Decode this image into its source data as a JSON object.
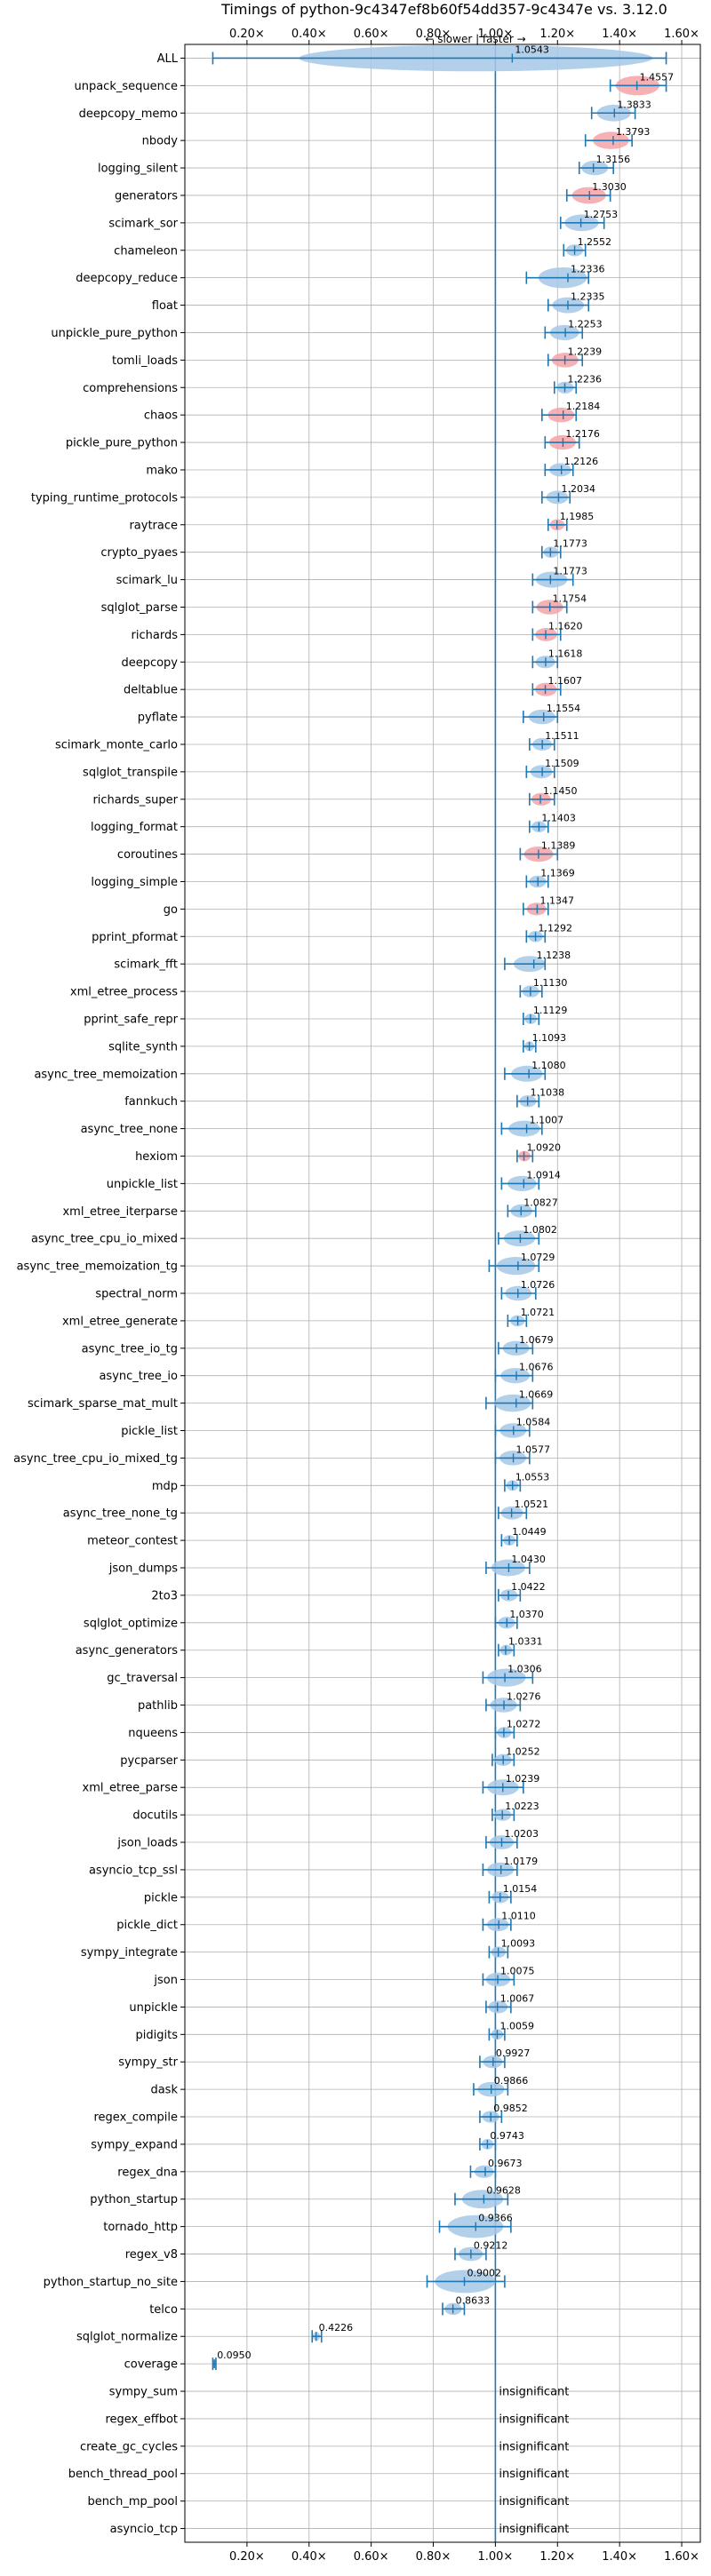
{
  "chart_data": {
    "type": "violin",
    "title": "Timings of python-9c4347ef8b60f54dd357-9c4347e vs. 3.12.0",
    "direction_label": "← slower | faster →",
    "xlim": [
      0.0,
      1.66
    ],
    "x_ticks": [
      0.2,
      0.4,
      0.6,
      0.8,
      1.0,
      1.2,
      1.4,
      1.6
    ],
    "x_tick_labels": [
      "0.20×",
      "0.40×",
      "0.60×",
      "0.80×",
      "1.00×",
      "1.20×",
      "1.40×",
      "1.60×"
    ],
    "reference_line": 1.0,
    "grid": true,
    "colors": {
      "normal": "#1f77b4",
      "normal_fill": "#a6c8e8",
      "highlight_fill": "#f4a3a8",
      "reference": "#1f77b4"
    },
    "insignificant_text": "insignificant",
    "benchmarks": [
      {
        "name": "ALL",
        "value": 1.0543,
        "label": "1.0543",
        "lo": 0.09,
        "hi": 1.55,
        "highlight": false
      },
      {
        "name": "unpack_sequence",
        "value": 1.4557,
        "label": "1.4557",
        "lo": 1.37,
        "hi": 1.55,
        "highlight": true
      },
      {
        "name": "deepcopy_memo",
        "value": 1.3833,
        "label": "1.3833",
        "lo": 1.31,
        "hi": 1.45,
        "highlight": false
      },
      {
        "name": "nbody",
        "value": 1.3793,
        "label": "1.3793",
        "lo": 1.29,
        "hi": 1.44,
        "highlight": true
      },
      {
        "name": "logging_silent",
        "value": 1.3156,
        "label": "1.3156",
        "lo": 1.27,
        "hi": 1.38,
        "highlight": false
      },
      {
        "name": "generators",
        "value": 1.303,
        "label": "1.3030",
        "lo": 1.23,
        "hi": 1.37,
        "highlight": true
      },
      {
        "name": "scimark_sor",
        "value": 1.2753,
        "label": "1.2753",
        "lo": 1.21,
        "hi": 1.35,
        "highlight": false
      },
      {
        "name": "chameleon",
        "value": 1.2552,
        "label": "1.2552",
        "lo": 1.22,
        "hi": 1.29,
        "highlight": false
      },
      {
        "name": "deepcopy_reduce",
        "value": 1.2336,
        "label": "1.2336",
        "lo": 1.1,
        "hi": 1.3,
        "highlight": false
      },
      {
        "name": "float",
        "value": 1.2335,
        "label": "1.2335",
        "lo": 1.17,
        "hi": 1.3,
        "highlight": false
      },
      {
        "name": "unpickle_pure_python",
        "value": 1.2253,
        "label": "1.2253",
        "lo": 1.16,
        "hi": 1.28,
        "highlight": false
      },
      {
        "name": "tomli_loads",
        "value": 1.2239,
        "label": "1.2239",
        "lo": 1.17,
        "hi": 1.28,
        "highlight": true
      },
      {
        "name": "comprehensions",
        "value": 1.2236,
        "label": "1.2236",
        "lo": 1.19,
        "hi": 1.26,
        "highlight": false
      },
      {
        "name": "chaos",
        "value": 1.2184,
        "label": "1.2184",
        "lo": 1.15,
        "hi": 1.26,
        "highlight": true
      },
      {
        "name": "pickle_pure_python",
        "value": 1.2176,
        "label": "1.2176",
        "lo": 1.16,
        "hi": 1.27,
        "highlight": true
      },
      {
        "name": "mako",
        "value": 1.2126,
        "label": "1.2126",
        "lo": 1.16,
        "hi": 1.25,
        "highlight": false
      },
      {
        "name": "typing_runtime_protocols",
        "value": 1.2034,
        "label": "1.2034",
        "lo": 1.15,
        "hi": 1.24,
        "highlight": false
      },
      {
        "name": "raytrace",
        "value": 1.1985,
        "label": "1.1985",
        "lo": 1.17,
        "hi": 1.23,
        "highlight": true
      },
      {
        "name": "crypto_pyaes",
        "value": 1.1773,
        "label": "1.1773",
        "lo": 1.15,
        "hi": 1.21,
        "highlight": false
      },
      {
        "name": "scimark_lu",
        "value": 1.1773,
        "label": "1.1773",
        "lo": 1.12,
        "hi": 1.25,
        "highlight": false
      },
      {
        "name": "sqlglot_parse",
        "value": 1.1754,
        "label": "1.1754",
        "lo": 1.12,
        "hi": 1.23,
        "highlight": true
      },
      {
        "name": "richards",
        "value": 1.162,
        "label": "1.1620",
        "lo": 1.12,
        "hi": 1.21,
        "highlight": true
      },
      {
        "name": "deepcopy",
        "value": 1.1618,
        "label": "1.1618",
        "lo": 1.12,
        "hi": 1.2,
        "highlight": false
      },
      {
        "name": "deltablue",
        "value": 1.1607,
        "label": "1.1607",
        "lo": 1.12,
        "hi": 1.21,
        "highlight": true
      },
      {
        "name": "pyflate",
        "value": 1.1554,
        "label": "1.1554",
        "lo": 1.09,
        "hi": 1.2,
        "highlight": false
      },
      {
        "name": "scimark_monte_carlo",
        "value": 1.1511,
        "label": "1.1511",
        "lo": 1.11,
        "hi": 1.19,
        "highlight": false
      },
      {
        "name": "sqlglot_transpile",
        "value": 1.1509,
        "label": "1.1509",
        "lo": 1.1,
        "hi": 1.19,
        "highlight": false
      },
      {
        "name": "richards_super",
        "value": 1.145,
        "label": "1.1450",
        "lo": 1.11,
        "hi": 1.19,
        "highlight": true
      },
      {
        "name": "logging_format",
        "value": 1.1403,
        "label": "1.1403",
        "lo": 1.11,
        "hi": 1.17,
        "highlight": false
      },
      {
        "name": "coroutines",
        "value": 1.1389,
        "label": "1.1389",
        "lo": 1.08,
        "hi": 1.2,
        "highlight": true
      },
      {
        "name": "logging_simple",
        "value": 1.1369,
        "label": "1.1369",
        "lo": 1.1,
        "hi": 1.17,
        "highlight": false
      },
      {
        "name": "go",
        "value": 1.1347,
        "label": "1.1347",
        "lo": 1.09,
        "hi": 1.17,
        "highlight": true
      },
      {
        "name": "pprint_pformat",
        "value": 1.1292,
        "label": "1.1292",
        "lo": 1.1,
        "hi": 1.16,
        "highlight": false
      },
      {
        "name": "scimark_fft",
        "value": 1.1238,
        "label": "1.1238",
        "lo": 1.03,
        "hi": 1.16,
        "highlight": false
      },
      {
        "name": "xml_etree_process",
        "value": 1.113,
        "label": "1.1130",
        "lo": 1.08,
        "hi": 1.15,
        "highlight": false
      },
      {
        "name": "pprint_safe_repr",
        "value": 1.1129,
        "label": "1.1129",
        "lo": 1.09,
        "hi": 1.14,
        "highlight": false
      },
      {
        "name": "sqlite_synth",
        "value": 1.1093,
        "label": "1.1093",
        "lo": 1.09,
        "hi": 1.13,
        "highlight": false
      },
      {
        "name": "async_tree_memoization",
        "value": 1.108,
        "label": "1.1080",
        "lo": 1.03,
        "hi": 1.16,
        "highlight": false
      },
      {
        "name": "fannkuch",
        "value": 1.1038,
        "label": "1.1038",
        "lo": 1.07,
        "hi": 1.14,
        "highlight": false
      },
      {
        "name": "async_tree_none",
        "value": 1.1007,
        "label": "1.1007",
        "lo": 1.02,
        "hi": 1.15,
        "highlight": false
      },
      {
        "name": "hexiom",
        "value": 1.092,
        "label": "1.0920",
        "lo": 1.07,
        "hi": 1.12,
        "highlight": true
      },
      {
        "name": "unpickle_list",
        "value": 1.0914,
        "label": "1.0914",
        "lo": 1.02,
        "hi": 1.14,
        "highlight": false
      },
      {
        "name": "xml_etree_iterparse",
        "value": 1.0827,
        "label": "1.0827",
        "lo": 1.04,
        "hi": 1.13,
        "highlight": false
      },
      {
        "name": "async_tree_cpu_io_mixed",
        "value": 1.0802,
        "label": "1.0802",
        "lo": 1.01,
        "hi": 1.14,
        "highlight": false
      },
      {
        "name": "async_tree_memoization_tg",
        "value": 1.0729,
        "label": "1.0729",
        "lo": 0.98,
        "hi": 1.14,
        "highlight": false
      },
      {
        "name": "spectral_norm",
        "value": 1.0726,
        "label": "1.0726",
        "lo": 1.02,
        "hi": 1.13,
        "highlight": false
      },
      {
        "name": "xml_etree_generate",
        "value": 1.0721,
        "label": "1.0721",
        "lo": 1.04,
        "hi": 1.1,
        "highlight": false
      },
      {
        "name": "async_tree_io_tg",
        "value": 1.0679,
        "label": "1.0679",
        "lo": 1.01,
        "hi": 1.12,
        "highlight": false
      },
      {
        "name": "async_tree_io",
        "value": 1.0676,
        "label": "1.0676",
        "lo": 1.0,
        "hi": 1.12,
        "highlight": false
      },
      {
        "name": "scimark_sparse_mat_mult",
        "value": 1.0669,
        "label": "1.0669",
        "lo": 0.97,
        "hi": 1.12,
        "highlight": false
      },
      {
        "name": "pickle_list",
        "value": 1.0584,
        "label": "1.0584",
        "lo": 1.0,
        "hi": 1.11,
        "highlight": false
      },
      {
        "name": "async_tree_cpu_io_mixed_tg",
        "value": 1.0577,
        "label": "1.0577",
        "lo": 1.0,
        "hi": 1.11,
        "highlight": false
      },
      {
        "name": "mdp",
        "value": 1.0553,
        "label": "1.0553",
        "lo": 1.03,
        "hi": 1.08,
        "highlight": false
      },
      {
        "name": "async_tree_none_tg",
        "value": 1.0521,
        "label": "1.0521",
        "lo": 1.01,
        "hi": 1.1,
        "highlight": false
      },
      {
        "name": "meteor_contest",
        "value": 1.0449,
        "label": "1.0449",
        "lo": 1.02,
        "hi": 1.07,
        "highlight": false
      },
      {
        "name": "json_dumps",
        "value": 1.043,
        "label": "1.0430",
        "lo": 0.97,
        "hi": 1.11,
        "highlight": false
      },
      {
        "name": "2to3",
        "value": 1.0422,
        "label": "1.0422",
        "lo": 1.01,
        "hi": 1.08,
        "highlight": false
      },
      {
        "name": "sqlglot_optimize",
        "value": 1.037,
        "label": "1.0370",
        "lo": 1.0,
        "hi": 1.07,
        "highlight": false
      },
      {
        "name": "async_generators",
        "value": 1.0331,
        "label": "1.0331",
        "lo": 1.01,
        "hi": 1.06,
        "highlight": false
      },
      {
        "name": "gc_traversal",
        "value": 1.0306,
        "label": "1.0306",
        "lo": 0.96,
        "hi": 1.12,
        "highlight": false
      },
      {
        "name": "pathlib",
        "value": 1.0276,
        "label": "1.0276",
        "lo": 0.97,
        "hi": 1.08,
        "highlight": false
      },
      {
        "name": "nqueens",
        "value": 1.0272,
        "label": "1.0272",
        "lo": 1.0,
        "hi": 1.06,
        "highlight": false
      },
      {
        "name": "pycparser",
        "value": 1.0252,
        "label": "1.0252",
        "lo": 0.99,
        "hi": 1.06,
        "highlight": false
      },
      {
        "name": "xml_etree_parse",
        "value": 1.0239,
        "label": "1.0239",
        "lo": 0.96,
        "hi": 1.09,
        "highlight": false
      },
      {
        "name": "docutils",
        "value": 1.0223,
        "label": "1.0223",
        "lo": 0.99,
        "hi": 1.06,
        "highlight": false
      },
      {
        "name": "json_loads",
        "value": 1.0203,
        "label": "1.0203",
        "lo": 0.97,
        "hi": 1.07,
        "highlight": false
      },
      {
        "name": "asyncio_tcp_ssl",
        "value": 1.0179,
        "label": "1.0179",
        "lo": 0.96,
        "hi": 1.07,
        "highlight": false
      },
      {
        "name": "pickle",
        "value": 1.0154,
        "label": "1.0154",
        "lo": 0.98,
        "hi": 1.05,
        "highlight": false
      },
      {
        "name": "pickle_dict",
        "value": 1.011,
        "label": "1.0110",
        "lo": 0.96,
        "hi": 1.05,
        "highlight": false
      },
      {
        "name": "sympy_integrate",
        "value": 1.0093,
        "label": "1.0093",
        "lo": 0.98,
        "hi": 1.04,
        "highlight": false
      },
      {
        "name": "json",
        "value": 1.0075,
        "label": "1.0075",
        "lo": 0.96,
        "hi": 1.06,
        "highlight": false
      },
      {
        "name": "unpickle",
        "value": 1.0067,
        "label": "1.0067",
        "lo": 0.97,
        "hi": 1.05,
        "highlight": false
      },
      {
        "name": "pidigits",
        "value": 1.0059,
        "label": "1.0059",
        "lo": 0.98,
        "hi": 1.03,
        "highlight": false
      },
      {
        "name": "sympy_str",
        "value": 0.9927,
        "label": "0.9927",
        "lo": 0.95,
        "hi": 1.03,
        "highlight": false
      },
      {
        "name": "dask",
        "value": 0.9866,
        "label": "0.9866",
        "lo": 0.93,
        "hi": 1.04,
        "highlight": false
      },
      {
        "name": "regex_compile",
        "value": 0.9852,
        "label": "0.9852",
        "lo": 0.95,
        "hi": 1.02,
        "highlight": false
      },
      {
        "name": "sympy_expand",
        "value": 0.9743,
        "label": "0.9743",
        "lo": 0.95,
        "hi": 1.0,
        "highlight": false
      },
      {
        "name": "regex_dna",
        "value": 0.9673,
        "label": "0.9673",
        "lo": 0.92,
        "hi": 1.0,
        "highlight": false
      },
      {
        "name": "python_startup",
        "value": 0.9628,
        "label": "0.9628",
        "lo": 0.87,
        "hi": 1.04,
        "highlight": false
      },
      {
        "name": "tornado_http",
        "value": 0.9366,
        "label": "0.9366",
        "lo": 0.82,
        "hi": 1.05,
        "highlight": false
      },
      {
        "name": "regex_v8",
        "value": 0.9212,
        "label": "0.9212",
        "lo": 0.87,
        "hi": 0.97,
        "highlight": false
      },
      {
        "name": "python_startup_no_site",
        "value": 0.9002,
        "label": "0.9002",
        "lo": 0.78,
        "hi": 1.03,
        "highlight": false
      },
      {
        "name": "telco",
        "value": 0.8633,
        "label": "0.8633",
        "lo": 0.83,
        "hi": 0.9,
        "highlight": false
      },
      {
        "name": "sqlglot_normalize",
        "value": 0.4226,
        "label": "0.4226",
        "lo": 0.41,
        "hi": 0.44,
        "highlight": false
      },
      {
        "name": "coverage",
        "value": 0.095,
        "label": "0.0950",
        "lo": 0.09,
        "hi": 0.1,
        "highlight": false
      },
      {
        "name": "sympy_sum",
        "value": null,
        "label": "insignificant",
        "insignificant": true
      },
      {
        "name": "regex_effbot",
        "value": null,
        "label": "insignificant",
        "insignificant": true
      },
      {
        "name": "create_gc_cycles",
        "value": null,
        "label": "insignificant",
        "insignificant": true
      },
      {
        "name": "bench_thread_pool",
        "value": null,
        "label": "insignificant",
        "insignificant": true
      },
      {
        "name": "bench_mp_pool",
        "value": null,
        "label": "insignificant",
        "insignificant": true
      },
      {
        "name": "asyncio_tcp",
        "value": null,
        "label": "insignificant",
        "insignificant": true
      }
    ]
  }
}
